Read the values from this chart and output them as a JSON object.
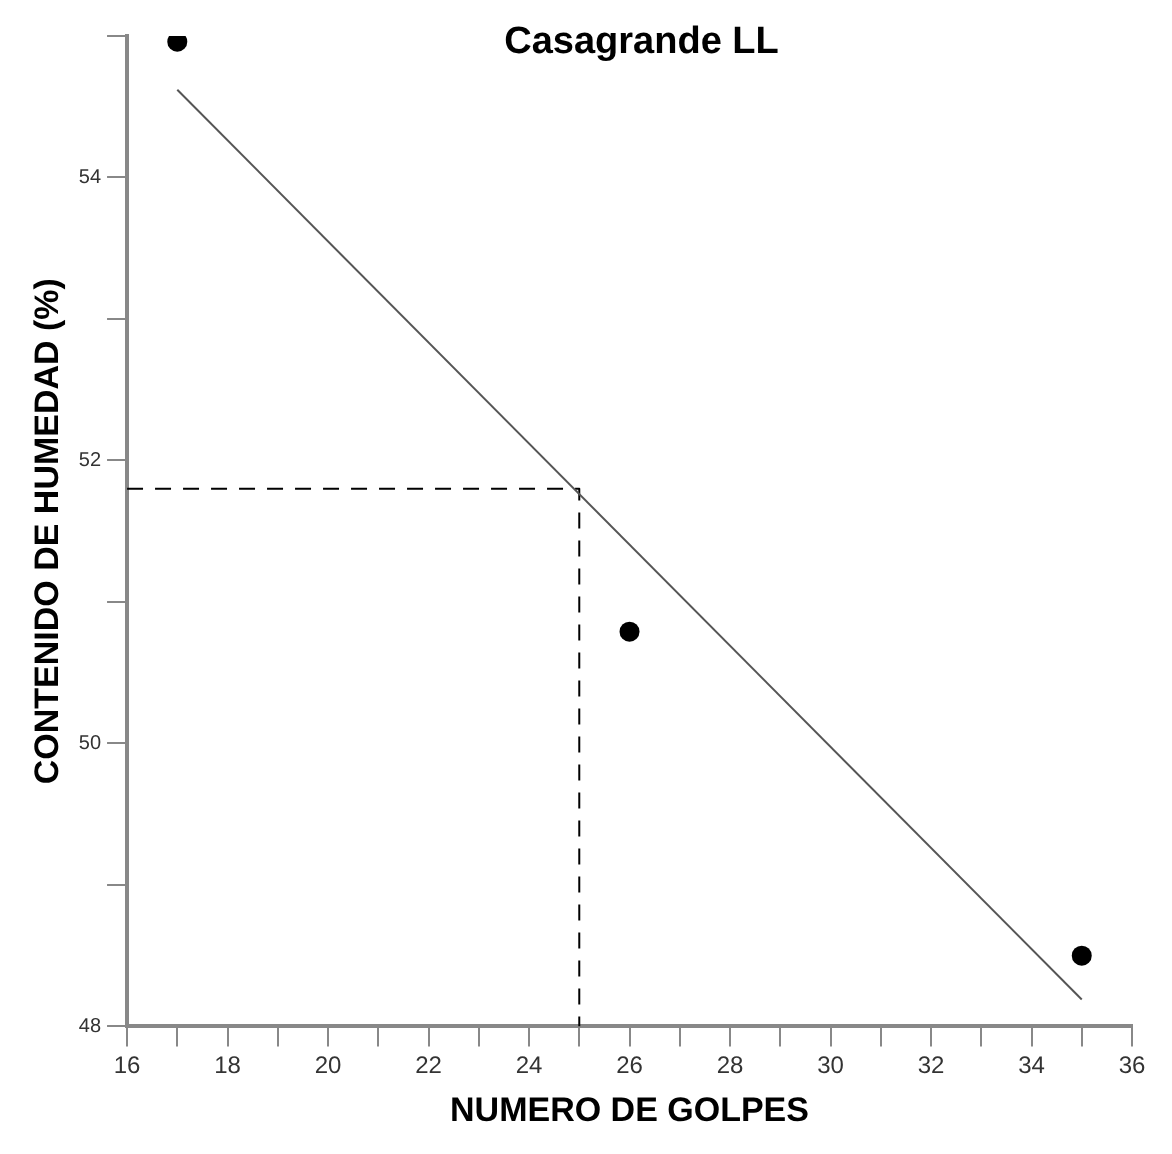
{
  "chart_data": {
    "type": "scatter",
    "title": "Casagrande LL",
    "xlabel": "NUMERO DE GOLPES",
    "ylabel": "CONTENIDO DE HUMEDAD (%)",
    "xlim": [
      16,
      36
    ],
    "ylim": [
      48,
      55
    ],
    "xticks": [
      16,
      {
        "value": 17,
        "label": null
      },
      18,
      {
        "value": 19,
        "label": null
      },
      20,
      {
        "value": 21,
        "label": null
      },
      22,
      {
        "value": 23,
        "label": null
      },
      24,
      {
        "value": 25,
        "label": null
      },
      26,
      {
        "value": 27,
        "label": null
      },
      28,
      {
        "value": 29,
        "label": null
      },
      30,
      {
        "value": 31,
        "label": null
      },
      32,
      {
        "value": 33,
        "label": null
      },
      34,
      {
        "value": 35,
        "label": null
      },
      36
    ],
    "yticks": [
      48,
      {
        "value": 49,
        "label": null
      },
      50,
      {
        "value": 51,
        "label": null
      },
      52,
      {
        "value": 53,
        "label": null
      },
      54,
      {
        "value": 55,
        "label": null
      }
    ],
    "grid": false,
    "legend": false,
    "series": [
      {
        "type": "scatter",
        "color": "#000000",
        "marker": "circle",
        "x": [
          17,
          26,
          35
        ],
        "values": [
          54.96,
          50.79,
          48.5
        ]
      },
      {
        "type": "line",
        "color": "#555555",
        "marker": "none",
        "line_style": "solid",
        "x": [
          17,
          35
        ],
        "values": [
          54.62,
          48.19
        ]
      },
      {
        "type": "line",
        "color": "#000000",
        "marker": "none",
        "line_style": "dashed",
        "x": [
          16,
          25,
          25
        ],
        "values": [
          51.8,
          51.8,
          48
        ]
      }
    ]
  }
}
